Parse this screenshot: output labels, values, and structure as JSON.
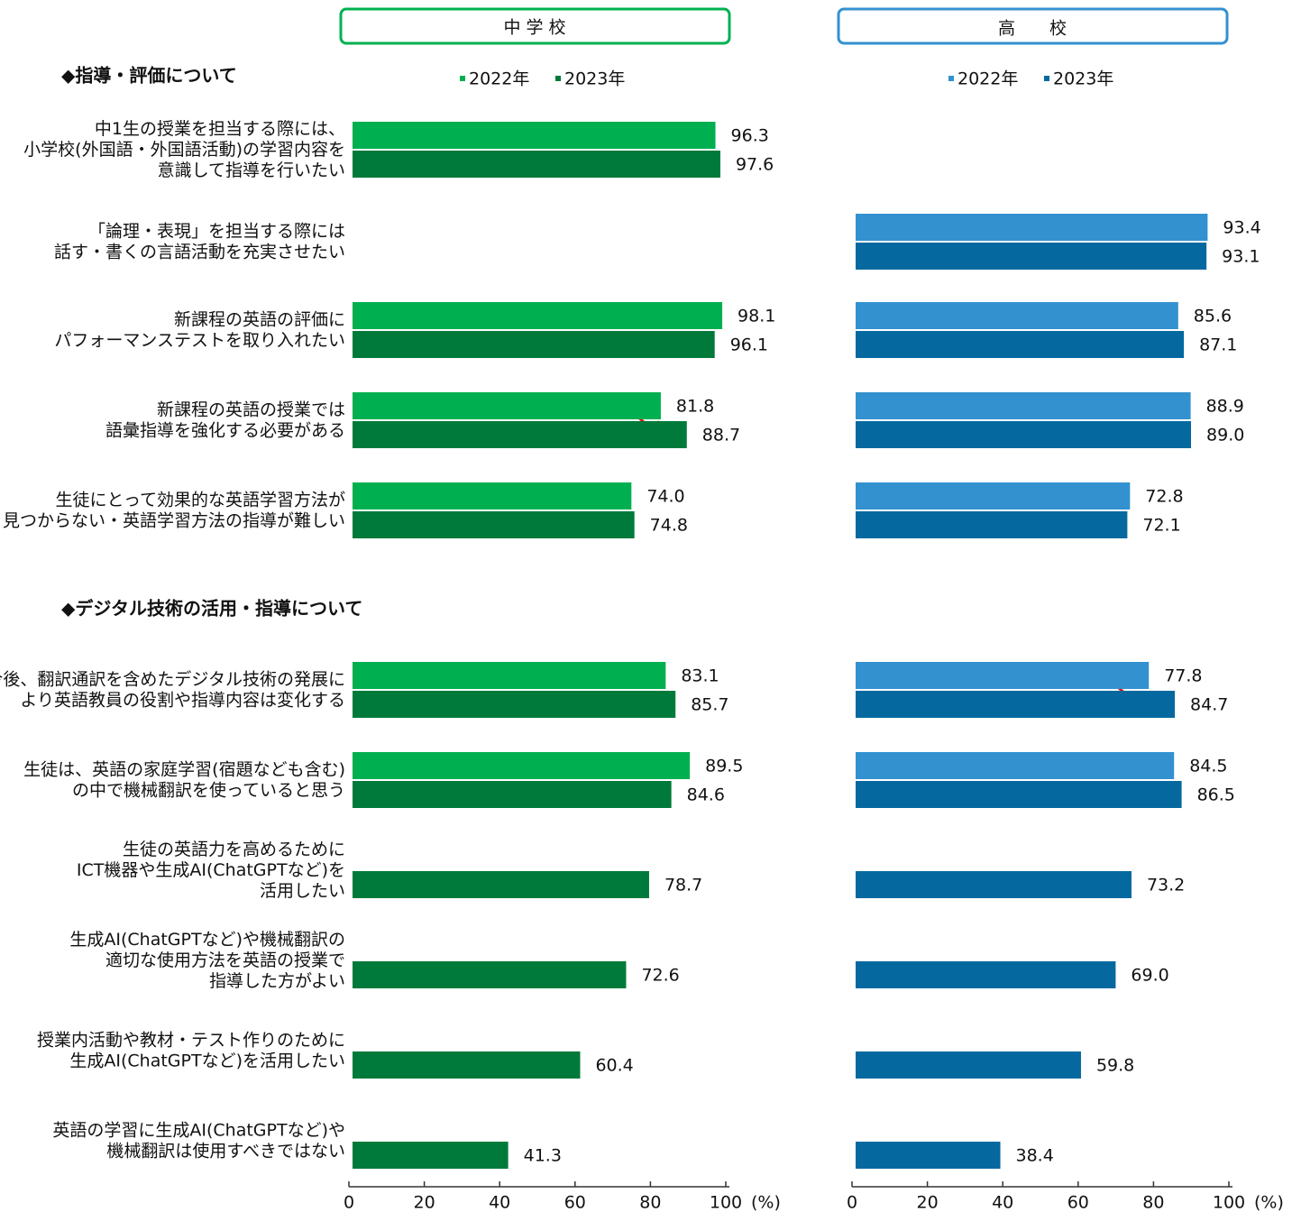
{
  "chart_data": [
    {
      "type": "hbar",
      "title": "中 学 校",
      "border_color": "#00b050",
      "annotations": [
        "◆指導・評価について",
        "◆デジタル技術の活用・指導について"
      ],
      "categories": [
        "中1生の授業を担当する際には、\n小学校(外国語・外国語活動)の学習内容を\n意識して指導を行いたい",
        "「論理・表現」を担当する際には\n話す・書くの言語活動を充実させたい",
        "新課程の英語の評価に\nパフォーマンステストを取り入れたい",
        "新課程の英語の授業では\n語彙指導を強化する必要がある",
        "生徒にとって効果的な英語学習方法が\n見つからない・英語学習方法の指導が難しい",
        "今後、翻訳通訳を含めたデジタル技術の発展に\nより英語教員の役割や指導内容は変化する",
        "生徒は、英語の家庭学習(宿題なども含む)\nの中で機械翻訳を使っていると思う",
        "生徒の英語力を高めるために\nICT機器や生成AI(ChatGPTなど)を\n活用したい",
        "生成AI(ChatGPTなど)や機械翻訳の\n適切な使用方法を英語の授業で\n指導した方がよい",
        "授業内活動や教材・テスト作りのために\n生成AI(ChatGPTなど)を活用したい",
        "英語の学習に生成AI(ChatGPTなど)や\n機械翻訳は使用すべきではない"
      ],
      "series": [
        {
          "name": "2022年",
          "color": "#00b050",
          "values": [
            96.3,
            null,
            98.1,
            81.8,
            74.0,
            83.1,
            89.5,
            null,
            null,
            null,
            null
          ],
          "value_labels": [
            "96.3",
            null,
            "98.1",
            "81.8",
            "74.0",
            "83.1",
            "89.5",
            null,
            null,
            null,
            null
          ]
        },
        {
          "name": "2023年",
          "color": "#007a3a",
          "values": [
            97.6,
            null,
            96.1,
            88.7,
            74.8,
            85.7,
            84.6,
            78.7,
            72.6,
            60.4,
            41.3
          ],
          "value_labels": [
            "97.6",
            null,
            "96.1",
            "88.7",
            "74.8",
            "85.7",
            "84.6",
            "78.7",
            "72.6",
            "60.4",
            "41.3"
          ]
        }
      ],
      "xlim": [
        0,
        100
      ],
      "xticks": [
        0,
        20,
        40,
        60,
        80,
        100
      ],
      "xlabel": "(%)"
    },
    {
      "type": "hbar",
      "title": "高　　校",
      "border_color": "#3391d0",
      "series": [
        {
          "name": "2022年",
          "color": "#3391d0",
          "values": [
            null,
            93.4,
            85.6,
            88.9,
            72.8,
            77.8,
            84.5,
            null,
            null,
            null,
            null
          ],
          "value_labels": [
            null,
            "93.4",
            "85.6",
            "88.9",
            "72.8",
            "77.8",
            "84.5",
            null,
            null,
            null,
            null
          ]
        },
        {
          "name": "2023年",
          "color": "#0569a0",
          "values": [
            null,
            93.1,
            87.1,
            89.0,
            72.1,
            84.7,
            86.5,
            73.2,
            69.0,
            59.8,
            38.4
          ],
          "value_labels": [
            null,
            "93.1",
            "87.1",
            "89.0",
            "72.1",
            "84.7",
            "86.5",
            "73.2",
            "69.0",
            "59.8",
            "38.4"
          ]
        }
      ],
      "xlim": [
        0,
        100
      ],
      "xticks": [
        0,
        20,
        40,
        60,
        80,
        100
      ],
      "xlabel": "(%)"
    }
  ]
}
